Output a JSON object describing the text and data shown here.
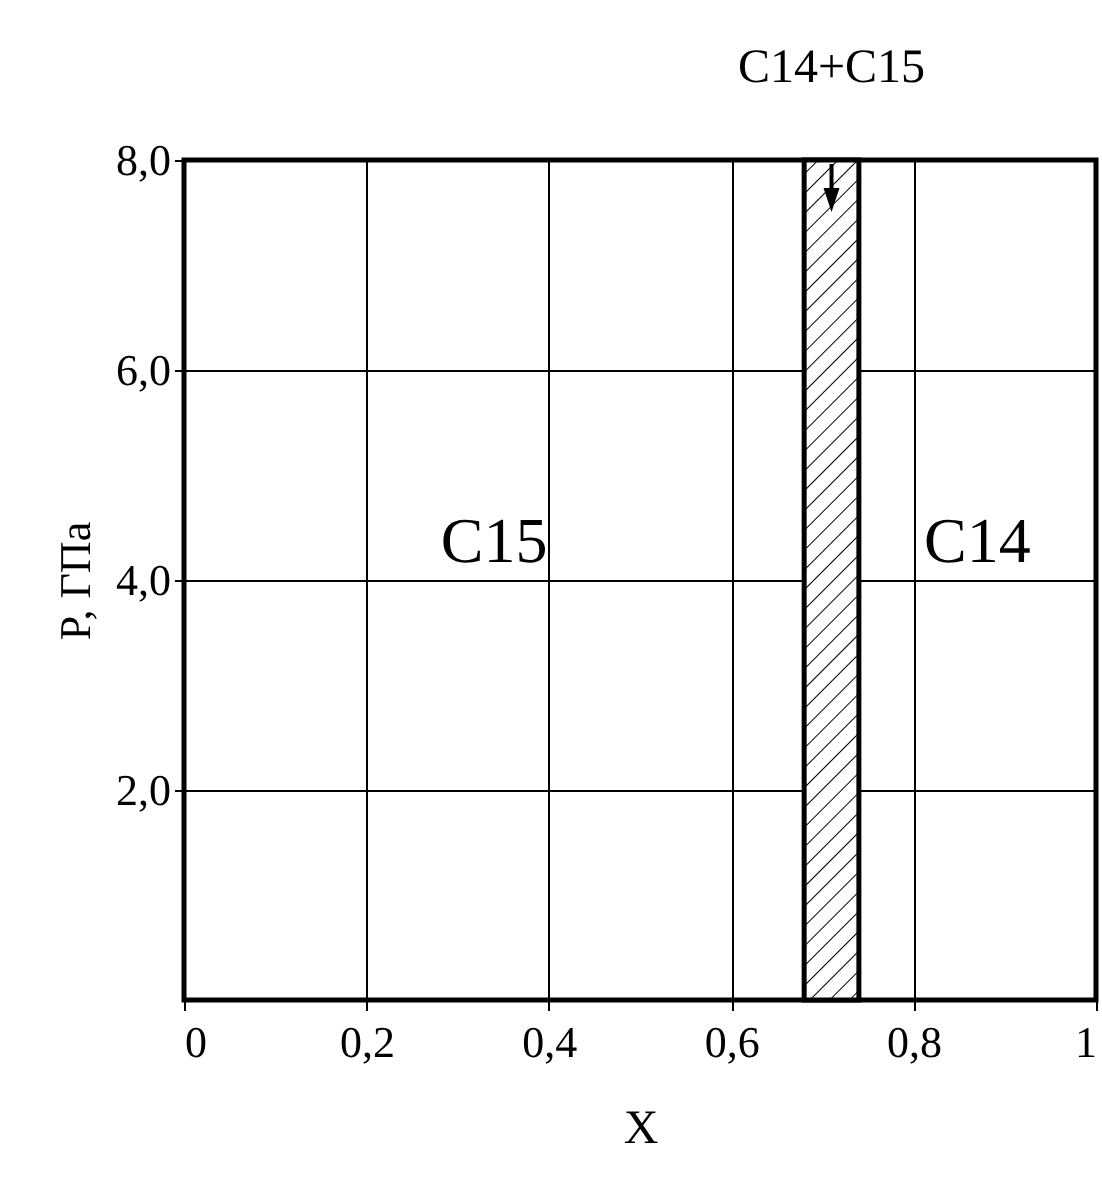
{
  "chart_data": {
    "type": "line",
    "xlabel": "X",
    "ylabel": "P, ГПа",
    "xlim": [
      0,
      1
    ],
    "ylim": [
      0,
      8
    ],
    "xticks": [
      {
        "value": 0,
        "label": "0"
      },
      {
        "value": 0.2,
        "label": "0,2"
      },
      {
        "value": 0.4,
        "label": "0,4"
      },
      {
        "value": 0.6,
        "label": "0,6"
      },
      {
        "value": 0.8,
        "label": "0,8"
      },
      {
        "value": 1,
        "label": "1"
      }
    ],
    "yticks": [
      {
        "value": 2,
        "label": "2,0"
      },
      {
        "value": 4,
        "label": "4,0"
      },
      {
        "value": 6,
        "label": "6,0"
      },
      {
        "value": 8,
        "label": "8,0"
      }
    ],
    "grid": true,
    "bands": [
      {
        "axis": "x",
        "from": 0.68,
        "to": 0.74,
        "label": "C14+C15"
      }
    ],
    "annotations": [
      "C15",
      "C14"
    ]
  }
}
